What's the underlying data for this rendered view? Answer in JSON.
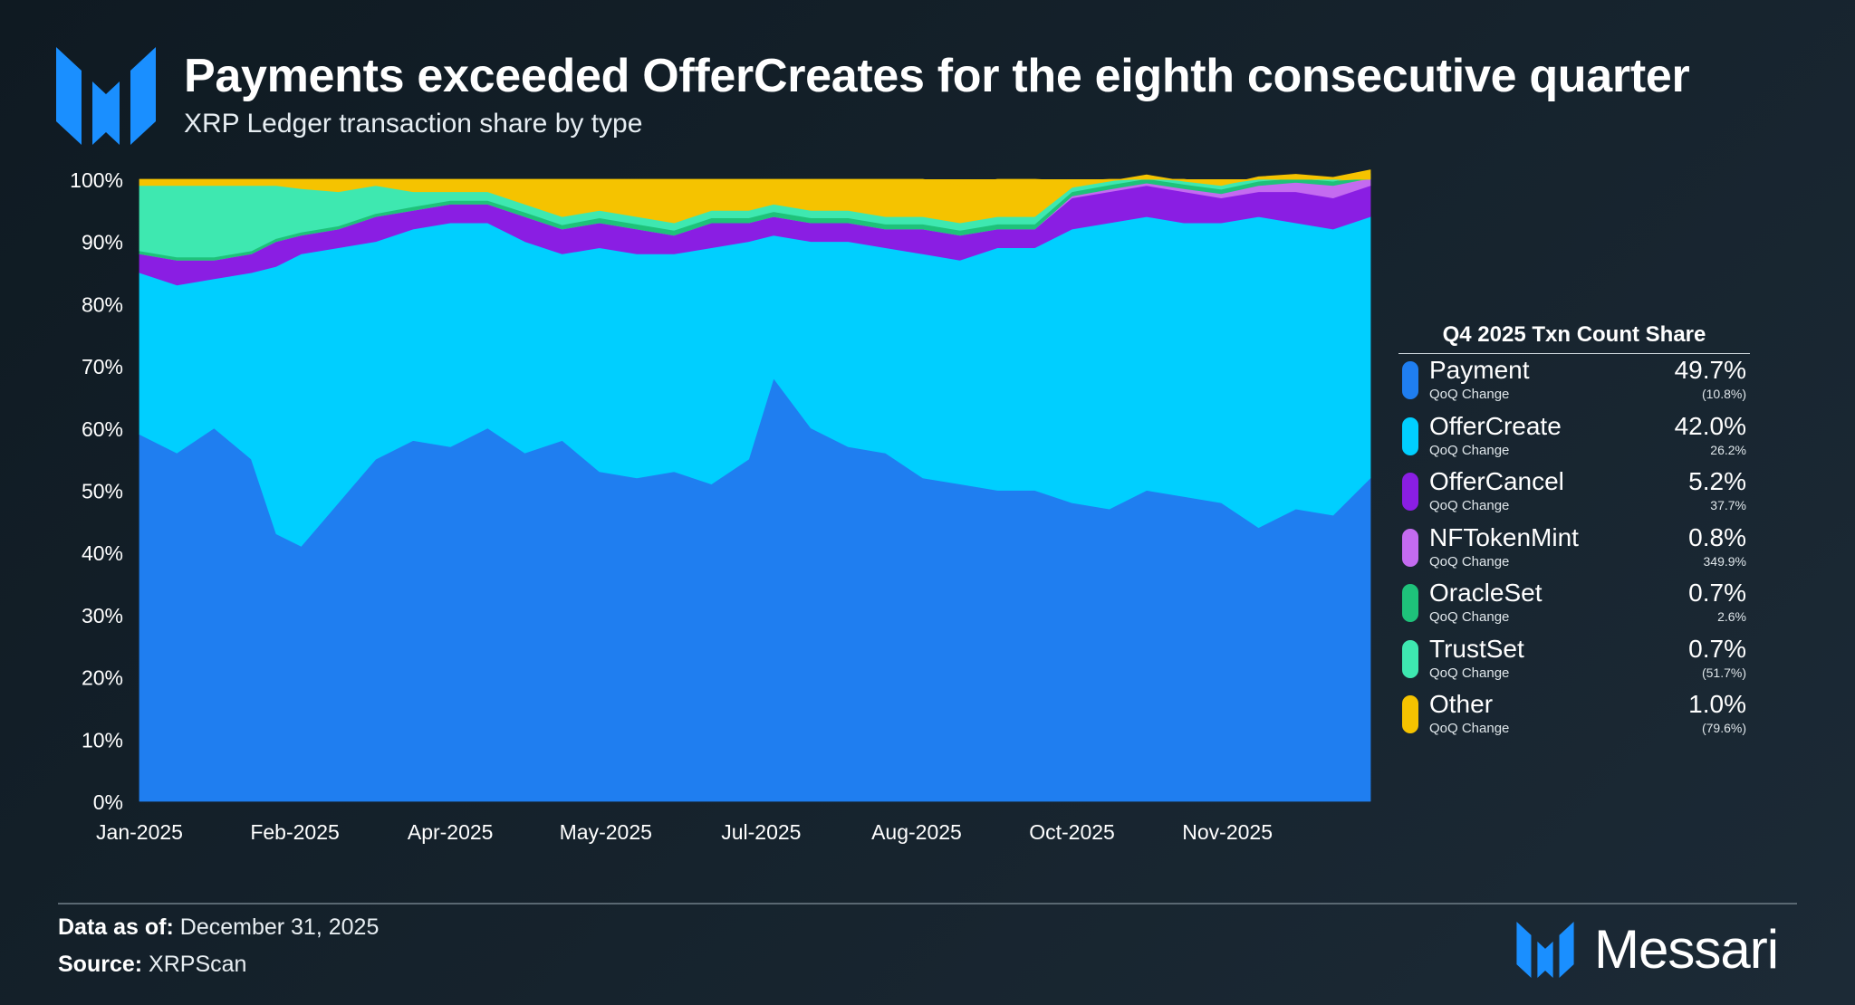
{
  "header": {
    "title": "Payments exceeded OfferCreates for the eighth consecutive quarter",
    "subtitle": "XRP Ledger transaction share by type"
  },
  "colors": {
    "Payment": "#1f7ef0",
    "OfferCreate": "#00cfff",
    "OfferCancel": "#8a1ee3",
    "NFTokenMint": "#c46bf0",
    "OracleSet": "#1ec27a",
    "TrustSet": "#3ee8b0",
    "Other": "#f5c300",
    "brand": "#1a8fff"
  },
  "legend": {
    "title": "Q4 2025 Txn Count Share",
    "sub_label": "QoQ Change",
    "items": [
      {
        "name": "Payment",
        "share": "49.7%",
        "change": "(10.8%)",
        "color": "#1f7ef0"
      },
      {
        "name": "OfferCreate",
        "share": "42.0%",
        "change": "26.2%",
        "color": "#00cfff"
      },
      {
        "name": "OfferCancel",
        "share": "5.2%",
        "change": "37.7%",
        "color": "#8a1ee3"
      },
      {
        "name": "NFTokenMint",
        "share": "0.8%",
        "change": "349.9%",
        "color": "#c46bf0"
      },
      {
        "name": "OracleSet",
        "share": "0.7%",
        "change": "2.6%",
        "color": "#1ec27a"
      },
      {
        "name": "TrustSet",
        "share": "0.7%",
        "change": "(51.7%)",
        "color": "#3ee8b0"
      },
      {
        "name": "Other",
        "share": "1.0%",
        "change": "(79.6%)",
        "color": "#f5c300"
      }
    ]
  },
  "footer": {
    "data_label": "Data as of:",
    "data_value": "December 31, 2025",
    "source_label": "Source:",
    "source_value": "XRPScan",
    "brand": "Messari"
  },
  "chart_data": {
    "type": "area",
    "stacked": true,
    "title": "XRP Ledger transaction share by type",
    "xlabel": "",
    "ylabel": "",
    "ylim": [
      0,
      100
    ],
    "y_ticks": [
      "0%",
      "10%",
      "20%",
      "30%",
      "40%",
      "50%",
      "60%",
      "70%",
      "80%",
      "90%",
      "100%"
    ],
    "x_ticks": [
      "Jan-2025",
      "Feb-2025",
      "Apr-2025",
      "May-2025",
      "Jul-2025",
      "Aug-2025",
      "Oct-2025",
      "Nov-2025"
    ],
    "x_tick_positions": [
      0,
      1.25,
      2.5,
      3.75,
      5,
      6.25,
      7.5,
      8.75
    ],
    "x_range": [
      0,
      9.9
    ],
    "series": [
      {
        "name": "Payment",
        "x": [
          0,
          0.3,
          0.6,
          0.9,
          1.1,
          1.3,
          1.6,
          1.9,
          2.2,
          2.5,
          2.8,
          3.1,
          3.4,
          3.7,
          4.0,
          4.3,
          4.6,
          4.9,
          5.1,
          5.4,
          5.7,
          6.0,
          6.3,
          6.6,
          6.9,
          7.2,
          7.5,
          7.8,
          8.1,
          8.4,
          8.7,
          9.0,
          9.3,
          9.6,
          9.9
        ],
        "values": [
          59,
          56,
          60,
          55,
          43,
          41,
          48,
          55,
          58,
          57,
          60,
          56,
          58,
          53,
          52,
          53,
          51,
          55,
          68,
          60,
          57,
          56,
          52,
          51,
          50,
          50,
          48,
          47,
          50,
          49,
          48,
          44,
          47,
          46,
          52
        ]
      },
      {
        "name": "OfferCreate",
        "x": [
          0,
          0.3,
          0.6,
          0.9,
          1.1,
          1.3,
          1.6,
          1.9,
          2.2,
          2.5,
          2.8,
          3.1,
          3.4,
          3.7,
          4.0,
          4.3,
          4.6,
          4.9,
          5.1,
          5.4,
          5.7,
          6.0,
          6.3,
          6.6,
          6.9,
          7.2,
          7.5,
          7.8,
          8.1,
          8.4,
          8.7,
          9.0,
          9.3,
          9.6,
          9.9
        ],
        "values": [
          26,
          27,
          24,
          30,
          43,
          47,
          41,
          35,
          34,
          36,
          33,
          34,
          30,
          36,
          36,
          35,
          38,
          35,
          23,
          30,
          33,
          33,
          36,
          36,
          39,
          39,
          44,
          46,
          44,
          44,
          45,
          50,
          46,
          46,
          42
        ]
      },
      {
        "name": "OfferCancel",
        "x": [
          0,
          0.3,
          0.6,
          0.9,
          1.1,
          1.3,
          1.6,
          1.9,
          2.2,
          2.5,
          2.8,
          3.1,
          3.4,
          3.7,
          4.0,
          4.3,
          4.6,
          4.9,
          5.1,
          5.4,
          5.7,
          6.0,
          6.3,
          6.6,
          6.9,
          7.2,
          7.5,
          7.8,
          8.1,
          8.4,
          8.7,
          9.0,
          9.3,
          9.6,
          9.9
        ],
        "values": [
          3,
          4,
          3,
          3,
          4,
          3,
          3,
          4,
          3,
          3,
          3,
          4,
          4,
          4,
          4,
          3,
          4,
          3,
          3,
          3,
          3,
          3,
          4,
          4,
          3,
          3,
          5,
          5,
          5,
          5,
          4,
          4,
          5,
          5,
          5
        ]
      },
      {
        "name": "NFTokenMint",
        "x": [
          0,
          0.3,
          0.6,
          0.9,
          1.1,
          1.3,
          1.6,
          1.9,
          2.2,
          2.5,
          2.8,
          3.1,
          3.4,
          3.7,
          4.0,
          4.3,
          4.6,
          4.9,
          5.1,
          5.4,
          5.7,
          6.0,
          6.3,
          6.6,
          6.9,
          7.2,
          7.5,
          7.8,
          8.1,
          8.4,
          8.7,
          9.0,
          9.3,
          9.6,
          9.9
        ],
        "values": [
          0,
          0,
          0,
          0,
          0,
          0,
          0,
          0,
          0,
          0,
          0,
          0,
          0,
          0,
          0,
          0,
          0,
          0,
          0,
          0,
          0,
          0,
          0,
          0,
          0,
          0,
          0.3,
          0.4,
          0.4,
          0.5,
          0.7,
          1,
          1.5,
          2,
          1.2
        ]
      },
      {
        "name": "OracleSet",
        "x": [
          0,
          0.3,
          0.6,
          0.9,
          1.1,
          1.3,
          1.6,
          1.9,
          2.2,
          2.5,
          2.8,
          3.1,
          3.4,
          3.7,
          4.0,
          4.3,
          4.6,
          4.9,
          5.1,
          5.4,
          5.7,
          6.0,
          6.3,
          6.6,
          6.9,
          7.2,
          7.5,
          7.8,
          8.1,
          8.4,
          8.7,
          9.0,
          9.3,
          9.6,
          9.9
        ],
        "values": [
          0.5,
          0.5,
          0.5,
          0.5,
          0.5,
          0.5,
          0.5,
          0.5,
          0.6,
          0.6,
          0.6,
          0.7,
          0.7,
          0.8,
          0.8,
          0.8,
          0.8,
          0.8,
          0.8,
          0.8,
          0.8,
          0.8,
          0.8,
          0.8,
          0.8,
          0.8,
          0.7,
          0.7,
          0.7,
          0.7,
          0.7,
          0.7,
          0.7,
          0.7,
          0.7
        ]
      },
      {
        "name": "TrustSet",
        "x": [
          0,
          0.3,
          0.6,
          0.9,
          1.1,
          1.3,
          1.6,
          1.9,
          2.2,
          2.5,
          2.8,
          3.1,
          3.4,
          3.7,
          4.0,
          4.3,
          4.6,
          4.9,
          5.1,
          5.4,
          5.7,
          6.0,
          6.3,
          6.6,
          6.9,
          7.2,
          7.5,
          7.8,
          8.1,
          8.4,
          8.7,
          9.0,
          9.3,
          9.6,
          9.9
        ],
        "values": [
          10.5,
          11.5,
          11.5,
          10.5,
          8.5,
          7,
          5.5,
          4.5,
          2.4,
          1.4,
          1.4,
          1.3,
          1.3,
          1.2,
          1.2,
          1.2,
          1.2,
          1.2,
          1.2,
          1.2,
          1.2,
          1.2,
          1.2,
          1.2,
          1.2,
          1.2,
          0.7,
          0.6,
          0.6,
          0.5,
          0.6,
          0.7,
          0.6,
          0.6,
          0.6
        ]
      },
      {
        "name": "Other",
        "x": [
          0,
          0.3,
          0.6,
          0.9,
          1.1,
          1.3,
          1.6,
          1.9,
          2.2,
          2.5,
          2.8,
          3.1,
          3.4,
          3.7,
          4.0,
          4.3,
          4.6,
          4.9,
          5.1,
          5.4,
          5.7,
          6.0,
          6.3,
          6.6,
          6.9,
          7.2,
          7.5,
          7.8,
          8.1,
          8.4,
          8.7,
          9.0,
          9.3,
          9.6,
          9.9
        ],
        "values": [
          1,
          1,
          1,
          1,
          1,
          1.5,
          2,
          1,
          2,
          2,
          2,
          4,
          6,
          5,
          6,
          7,
          5,
          5,
          4,
          5,
          5,
          6,
          6,
          6,
          6,
          6,
          1,
          0.3,
          0.3,
          0.3,
          0.3,
          0.3,
          0.3,
          0.3,
          0.3
        ]
      }
    ]
  }
}
